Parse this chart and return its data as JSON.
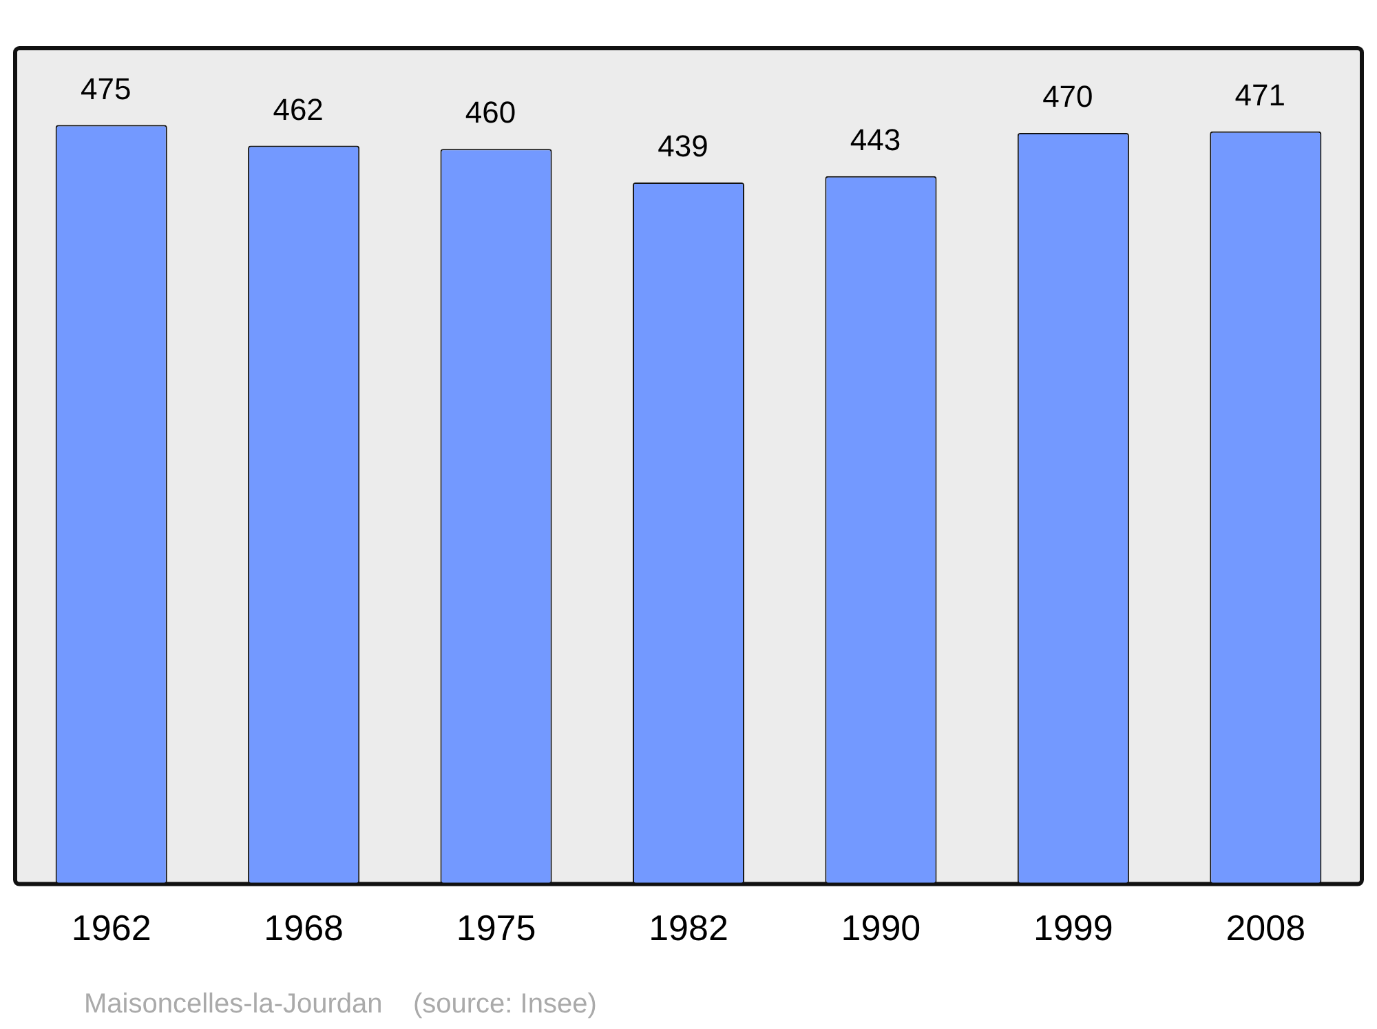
{
  "chart_data": {
    "type": "bar",
    "categories": [
      "1962",
      "1968",
      "1975",
      "1982",
      "1990",
      "1999",
      "2008"
    ],
    "values": [
      475,
      462,
      460,
      439,
      443,
      470,
      471
    ],
    "color": "#7399ff",
    "data_labels": true,
    "ylim": [
      0,
      523
    ],
    "tick_labels": "x",
    "grid": false,
    "legend": false,
    "annotations": [
      "Maisoncelles-la-Jourdan    (source: Insee)"
    ]
  }
}
